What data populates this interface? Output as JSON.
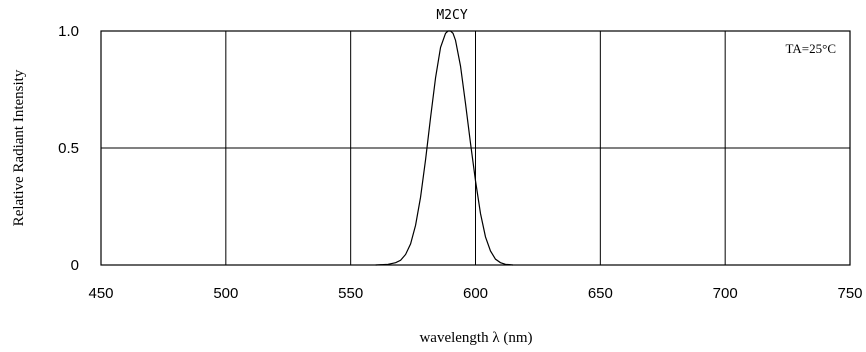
{
  "chart_data": {
    "type": "line",
    "title": "M2CY",
    "xlabel": "wavelength λ (nm)",
    "ylabel": "Relative Radiant Intensity",
    "annotation": "TA=25°C",
    "xlim": [
      450,
      750
    ],
    "ylim": [
      0,
      1.0
    ],
    "x_ticks": [
      450,
      500,
      550,
      600,
      650,
      700,
      750
    ],
    "y_ticks": [
      0,
      0.5,
      1.0
    ],
    "y_tick_labels": [
      "0",
      "0.5",
      "1.0"
    ],
    "grid": true,
    "series": [
      {
        "x": [
          560,
          565,
          568,
          570,
          572,
          574,
          576,
          578,
          580,
          582,
          584,
          586,
          588,
          589,
          590,
          591,
          592,
          594,
          596,
          598,
          600,
          602,
          604,
          606,
          608,
          610,
          612,
          615
        ],
        "y": [
          0,
          0.003,
          0.01,
          0.02,
          0.045,
          0.09,
          0.17,
          0.29,
          0.45,
          0.63,
          0.8,
          0.93,
          0.99,
          1.0,
          1.0,
          0.99,
          0.96,
          0.85,
          0.69,
          0.52,
          0.36,
          0.22,
          0.12,
          0.06,
          0.025,
          0.01,
          0.003,
          0
        ]
      }
    ]
  }
}
